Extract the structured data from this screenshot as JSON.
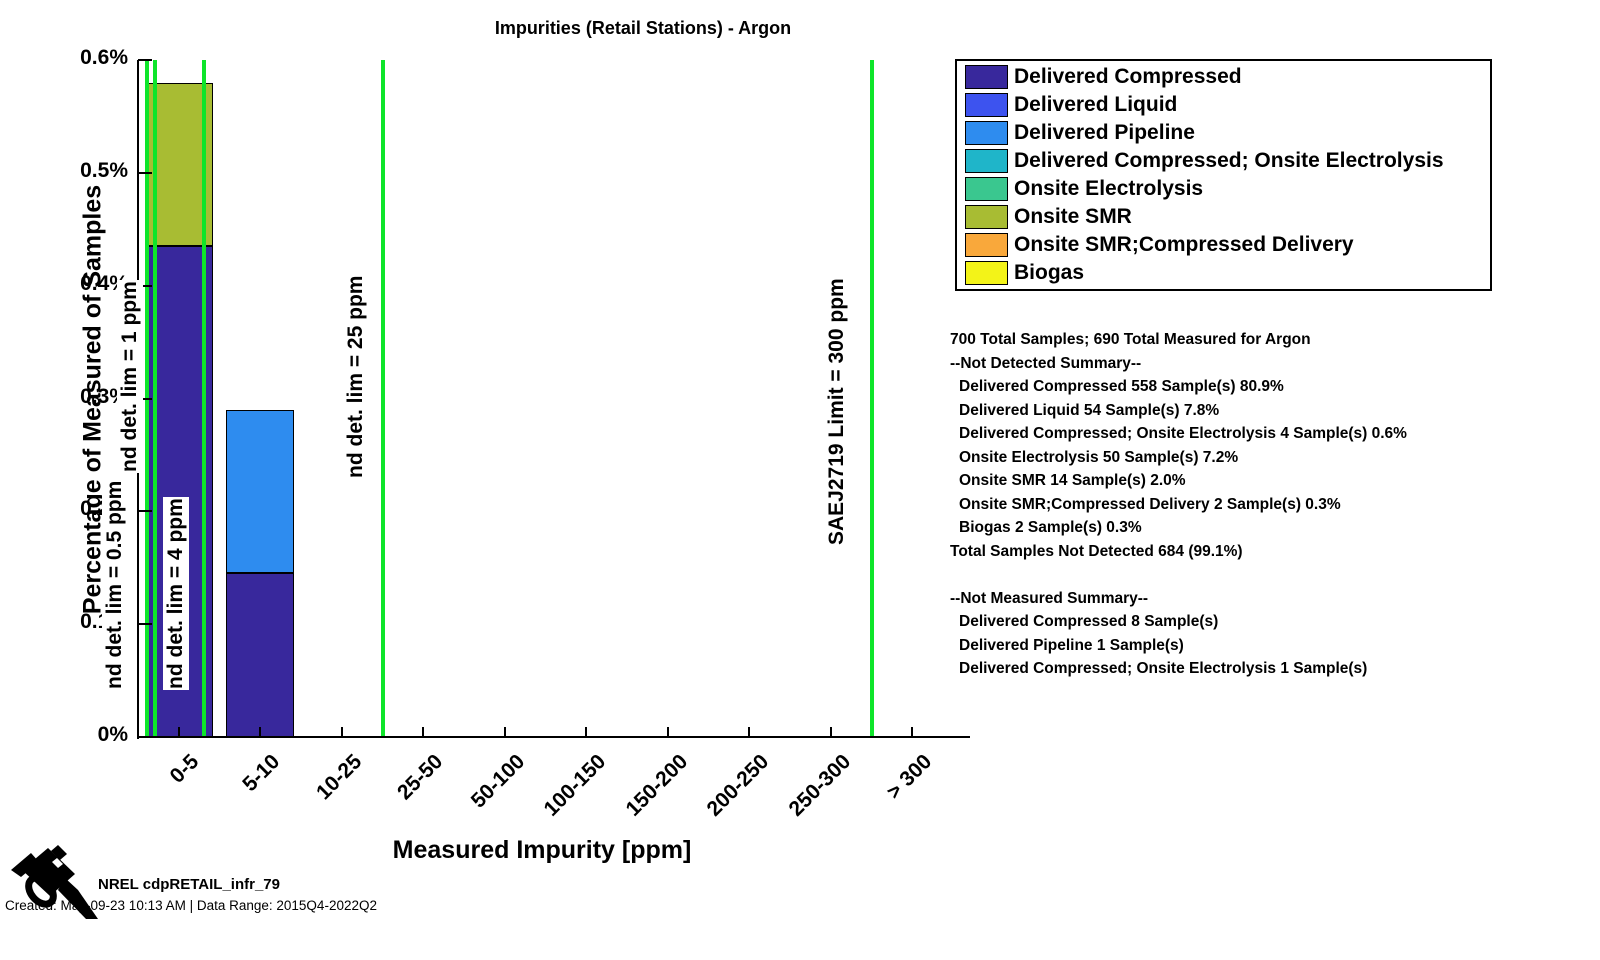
{
  "title": "Impurities (Retail Stations) - Argon",
  "chart_data": {
    "type": "bar",
    "stacked": true,
    "title": "Impurities (Retail Stations) - Argon",
    "xlabel": "Measured Impurity [ppm]",
    "ylabel": "Percentage of Measured of Samples",
    "categories": [
      "0-5",
      "5-10",
      "10-25",
      "25-50",
      "50-100",
      "100-150",
      "150-200",
      "200-250",
      "250-300",
      "> 300"
    ],
    "ylim": [
      0,
      0.6
    ],
    "y_unit": "%",
    "y_ticks": [
      {
        "value": 0.0,
        "label": "0%"
      },
      {
        "value": 0.1,
        "label": "0.1%"
      },
      {
        "value": 0.2,
        "label": "0.2%"
      },
      {
        "value": 0.3,
        "label": "0.3%"
      },
      {
        "value": 0.4,
        "label": "0.4%"
      },
      {
        "value": 0.5,
        "label": "0.5%"
      },
      {
        "value": 0.6,
        "label": "0.6%"
      }
    ],
    "grid": false,
    "legend_position": "upper right",
    "series": [
      {
        "name": "Delivered Compressed",
        "color": "#38289C",
        "values": [
          0.435,
          0.145,
          0,
          0,
          0,
          0,
          0,
          0,
          0,
          0
        ]
      },
      {
        "name": "Delivered Liquid",
        "color": "#3D53EF",
        "values": [
          0,
          0,
          0,
          0,
          0,
          0,
          0,
          0,
          0,
          0
        ]
      },
      {
        "name": "Delivered Pipeline",
        "color": "#2E8CEF",
        "values": [
          0,
          0.145,
          0,
          0,
          0,
          0,
          0,
          0,
          0,
          0
        ]
      },
      {
        "name": "Delivered Compressed; Onsite Electrolysis",
        "color": "#1FB5C9",
        "values": [
          0,
          0,
          0,
          0,
          0,
          0,
          0,
          0,
          0,
          0
        ]
      },
      {
        "name": "Onsite Electrolysis",
        "color": "#3AC78F",
        "values": [
          0,
          0,
          0,
          0,
          0,
          0,
          0,
          0,
          0,
          0
        ]
      },
      {
        "name": "Onsite SMR",
        "color": "#A8BC33",
        "values": [
          0.145,
          0,
          0,
          0,
          0,
          0,
          0,
          0,
          0,
          0
        ]
      },
      {
        "name": "Onsite SMR;Compressed Delivery",
        "color": "#F9A83B",
        "values": [
          0,
          0,
          0,
          0,
          0,
          0,
          0,
          0,
          0,
          0
        ]
      },
      {
        "name": "Biogas",
        "color": "#F3F318",
        "values": [
          0,
          0,
          0,
          0,
          0,
          0,
          0,
          0,
          0,
          0
        ]
      }
    ],
    "limit_lines": [
      {
        "label": "nd det. lim = 0.5 ppm",
        "ppm": 0.5
      },
      {
        "label": "nd det. lim = 1 ppm",
        "ppm": 1
      },
      {
        "label": "nd det. lim = 4 ppm",
        "ppm": 4
      },
      {
        "label": "nd det. lim = 25 ppm",
        "ppm": 25
      },
      {
        "label": "SAEJ2719 Limit = 300 ppm",
        "ppm": 300
      }
    ]
  },
  "side_panel": {
    "lines": [
      {
        "text": "700 Total Samples; 690 Total Measured for Argon",
        "indent": 0
      },
      {
        "text": "--Not Detected Summary--",
        "indent": 0
      },
      {
        "text": "Delivered Compressed 558 Sample(s) 80.9%",
        "indent": 1
      },
      {
        "text": "Delivered Liquid 54 Sample(s) 7.8%",
        "indent": 1
      },
      {
        "text": "Delivered Compressed; Onsite Electrolysis 4 Sample(s) 0.6%",
        "indent": 1
      },
      {
        "text": "Onsite Electrolysis 50 Sample(s) 7.2%",
        "indent": 1
      },
      {
        "text": "Onsite SMR 14 Sample(s) 2.0%",
        "indent": 1
      },
      {
        "text": "Onsite SMR;Compressed Delivery 2 Sample(s) 0.3%",
        "indent": 1
      },
      {
        "text": "Biogas 2 Sample(s) 0.3%",
        "indent": 1
      },
      {
        "text": "Total Samples Not Detected 684 (99.1%)",
        "indent": 0
      },
      {
        "text": "",
        "indent": 0
      },
      {
        "text": "--Not Measured Summary--",
        "indent": 0
      },
      {
        "text": "Delivered Compressed 8 Sample(s)",
        "indent": 1
      },
      {
        "text": "Delivered Pipeline 1 Sample(s)",
        "indent": 1
      },
      {
        "text": "Delivered Compressed; Onsite Electrolysis 1 Sample(s)",
        "indent": 1
      }
    ]
  },
  "footer": {
    "logo_icon": "fuel-nozzle-icon",
    "program_label": "NREL cdpRETAIL_infr_79",
    "created_line": "Created: May-09-23 10:13 AM | Data Range: 2015Q4-2022Q2"
  },
  "colors": {
    "limit_line_green": "#0EE52A",
    "axis": "#000000",
    "background": "#FFFFFF"
  }
}
